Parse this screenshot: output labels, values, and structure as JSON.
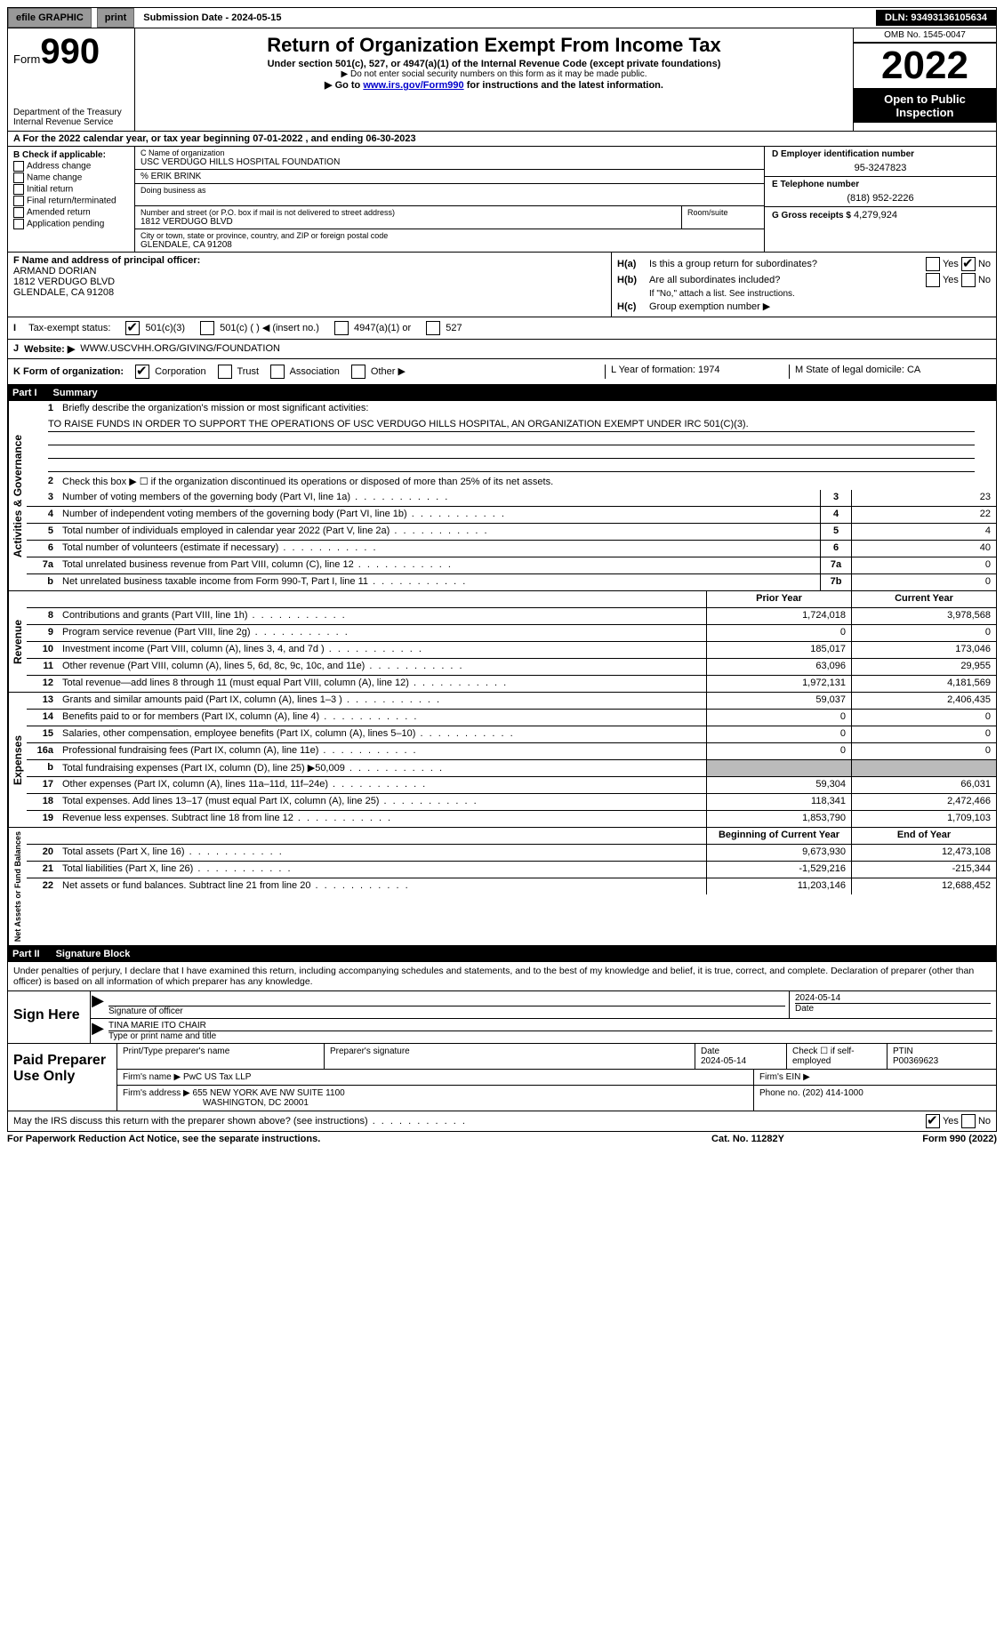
{
  "topbar": {
    "efile": "efile GRAPHIC",
    "print": "print",
    "sub_label": "Submission Date - 2024-05-15",
    "dln": "DLN: 93493136105634"
  },
  "header": {
    "form_word": "Form",
    "form_num": "990",
    "dept": "Department of the Treasury",
    "irs": "Internal Revenue Service",
    "title": "Return of Organization Exempt From Income Tax",
    "sub1": "Under section 501(c), 527, or 4947(a)(1) of the Internal Revenue Code (except private foundations)",
    "sub2": "Do not enter social security numbers on this form as it may be made public.",
    "sub3_pre": "Go to ",
    "sub3_link": "www.irs.gov/Form990",
    "sub3_post": " for instructions and the latest information.",
    "omb": "OMB No. 1545-0047",
    "year": "2022",
    "open": "Open to Public Inspection"
  },
  "section_a": {
    "text": "A For the 2022 calendar year, or tax year beginning 07-01-2022    , and ending 06-30-2023"
  },
  "section_b": {
    "lbl": "B Check if applicable:",
    "opts": [
      "Address change",
      "Name change",
      "Initial return",
      "Final return/terminated",
      "Amended return",
      "Application pending"
    ]
  },
  "section_c": {
    "name_lbl": "C Name of organization",
    "name": "USC VERDUGO HILLS HOSPITAL FOUNDATION",
    "care": "% ERIK BRINK",
    "dba_lbl": "Doing business as",
    "addr_lbl": "Number and street (or P.O. box if mail is not delivered to street address)",
    "room_lbl": "Room/suite",
    "addr": "1812 VERDUGO BLVD",
    "city_lbl": "City or town, state or province, country, and ZIP or foreign postal code",
    "city": "GLENDALE, CA  91208"
  },
  "section_d": {
    "ein_lbl": "D Employer identification number",
    "ein": "95-3247823",
    "tel_lbl": "E Telephone number",
    "tel": "(818) 952-2226",
    "gross_lbl": "G Gross receipts $",
    "gross": "4,279,924"
  },
  "section_f": {
    "lbl": "F Name and address of principal officer:",
    "name": "ARMAND DORIAN",
    "addr1": "1812 VERDUGO BLVD",
    "addr2": "GLENDALE, CA  91208"
  },
  "section_h": {
    "a": "Is this a group return for subordinates?",
    "b": "Are all subordinates included?",
    "b_note": "If \"No,\" attach a list. See instructions.",
    "c": "Group exemption number ▶",
    "yes": "Yes",
    "no": "No"
  },
  "tax_row": {
    "lbl": "Tax-exempt status:",
    "o1": "501(c)(3)",
    "o2": "501(c) (  ) ◀ (insert no.)",
    "o3": "4947(a)(1) or",
    "o4": "527",
    "i_lbl": "I"
  },
  "row_j": {
    "lbl": "J",
    "web": "Website: ▶",
    "url": "WWW.USCVHH.ORG/GIVING/FOUNDATION"
  },
  "row_k": {
    "lbl": "K Form of organization:",
    "opts": [
      "Corporation",
      "Trust",
      "Association",
      "Other ▶"
    ],
    "l": "L Year of formation: 1974",
    "m": "M State of legal domicile: CA"
  },
  "part1": {
    "hdr": "Part I",
    "title": "Summary",
    "l1": "Briefly describe the organization's mission or most significant activities:",
    "mission": "TO RAISE FUNDS IN ORDER TO SUPPORT THE OPERATIONS OF USC VERDUGO HILLS HOSPITAL, AN ORGANIZATION EXEMPT UNDER IRC 501(C)(3).",
    "l2": "Check this box ▶ ☐  if the organization discontinued its operations or disposed of more than 25% of its net assets.",
    "vtab1": "Activities & Governance",
    "vtab2": "Revenue",
    "vtab3": "Expenses",
    "vtab4": "Net Assets or Fund Balances",
    "hdr_prior": "Prior Year",
    "hdr_curr": "Current Year",
    "hdr_beg": "Beginning of Current Year",
    "hdr_end": "End of Year",
    "lines_gov": [
      {
        "n": "3",
        "d": "Number of voting members of the governing body (Part VI, line 1a)",
        "box": "3",
        "v": "23"
      },
      {
        "n": "4",
        "d": "Number of independent voting members of the governing body (Part VI, line 1b)",
        "box": "4",
        "v": "22"
      },
      {
        "n": "5",
        "d": "Total number of individuals employed in calendar year 2022 (Part V, line 2a)",
        "box": "5",
        "v": "4"
      },
      {
        "n": "6",
        "d": "Total number of volunteers (estimate if necessary)",
        "box": "6",
        "v": "40"
      },
      {
        "n": "7a",
        "d": "Total unrelated business revenue from Part VIII, column (C), line 12",
        "box": "7a",
        "v": "0"
      },
      {
        "n": "b",
        "d": "Net unrelated business taxable income from Form 990-T, Part I, line 11",
        "box": "7b",
        "v": "0"
      }
    ],
    "lines_rev": [
      {
        "n": "8",
        "d": "Contributions and grants (Part VIII, line 1h)",
        "p": "1,724,018",
        "c": "3,978,568"
      },
      {
        "n": "9",
        "d": "Program service revenue (Part VIII, line 2g)",
        "p": "0",
        "c": "0"
      },
      {
        "n": "10",
        "d": "Investment income (Part VIII, column (A), lines 3, 4, and 7d )",
        "p": "185,017",
        "c": "173,046"
      },
      {
        "n": "11",
        "d": "Other revenue (Part VIII, column (A), lines 5, 6d, 8c, 9c, 10c, and 11e)",
        "p": "63,096",
        "c": "29,955"
      },
      {
        "n": "12",
        "d": "Total revenue—add lines 8 through 11 (must equal Part VIII, column (A), line 12)",
        "p": "1,972,131",
        "c": "4,181,569"
      }
    ],
    "lines_exp": [
      {
        "n": "13",
        "d": "Grants and similar amounts paid (Part IX, column (A), lines 1–3 )",
        "p": "59,037",
        "c": "2,406,435"
      },
      {
        "n": "14",
        "d": "Benefits paid to or for members (Part IX, column (A), line 4)",
        "p": "0",
        "c": "0"
      },
      {
        "n": "15",
        "d": "Salaries, other compensation, employee benefits (Part IX, column (A), lines 5–10)",
        "p": "0",
        "c": "0"
      },
      {
        "n": "16a",
        "d": "Professional fundraising fees (Part IX, column (A), line 11e)",
        "p": "0",
        "c": "0"
      },
      {
        "n": "b",
        "d": "Total fundraising expenses (Part IX, column (D), line 25) ▶50,009",
        "p": "",
        "c": "",
        "grey": true
      },
      {
        "n": "17",
        "d": "Other expenses (Part IX, column (A), lines 11a–11d, 11f–24e)",
        "p": "59,304",
        "c": "66,031"
      },
      {
        "n": "18",
        "d": "Total expenses. Add lines 13–17 (must equal Part IX, column (A), line 25)",
        "p": "118,341",
        "c": "2,472,466"
      },
      {
        "n": "19",
        "d": "Revenue less expenses. Subtract line 18 from line 12",
        "p": "1,853,790",
        "c": "1,709,103"
      }
    ],
    "lines_net": [
      {
        "n": "20",
        "d": "Total assets (Part X, line 16)",
        "p": "9,673,930",
        "c": "12,473,108"
      },
      {
        "n": "21",
        "d": "Total liabilities (Part X, line 26)",
        "p": "-1,529,216",
        "c": "-215,344"
      },
      {
        "n": "22",
        "d": "Net assets or fund balances. Subtract line 21 from line 20",
        "p": "11,203,146",
        "c": "12,688,452"
      }
    ]
  },
  "part2": {
    "hdr": "Part II",
    "title": "Signature Block",
    "decl": "Under penalties of perjury, I declare that I have examined this return, including accompanying schedules and statements, and to the best of my knowledge and belief, it is true, correct, and complete. Declaration of preparer (other than officer) is based on all information of which preparer has any knowledge.",
    "sign_here": "Sign Here",
    "sig_of": "Signature of officer",
    "date": "Date",
    "date_val": "2024-05-14",
    "name_title": "TINA MARIE ITO  CHAIR",
    "type_name": "Type or print name and title"
  },
  "paid": {
    "lbl": "Paid Preparer Use Only",
    "r1": {
      "c1": "Print/Type preparer's name",
      "c2": "Preparer's signature",
      "c3": "Date",
      "c3v": "2024-05-14",
      "c4": "Check ☐ if self-employed",
      "c5": "PTIN",
      "c5v": "P00369623"
    },
    "r2": {
      "c1": "Firm's name    ▶",
      "c1v": "PwC US Tax LLP",
      "c2": "Firm's EIN ▶"
    },
    "r3": {
      "c1": "Firm's address ▶",
      "c1v": "655 NEW YORK AVE NW SUITE 1100",
      "c1v2": "WASHINGTON, DC  20001",
      "c2": "Phone no. (202) 414-1000"
    }
  },
  "discuss": {
    "q": "May the IRS discuss this return with the preparer shown above? (see instructions)",
    "yes": "Yes",
    "no": "No"
  },
  "footer": {
    "l": "For Paperwork Reduction Act Notice, see the separate instructions.",
    "c": "Cat. No. 11282Y",
    "r": "Form 990 (2022)"
  }
}
